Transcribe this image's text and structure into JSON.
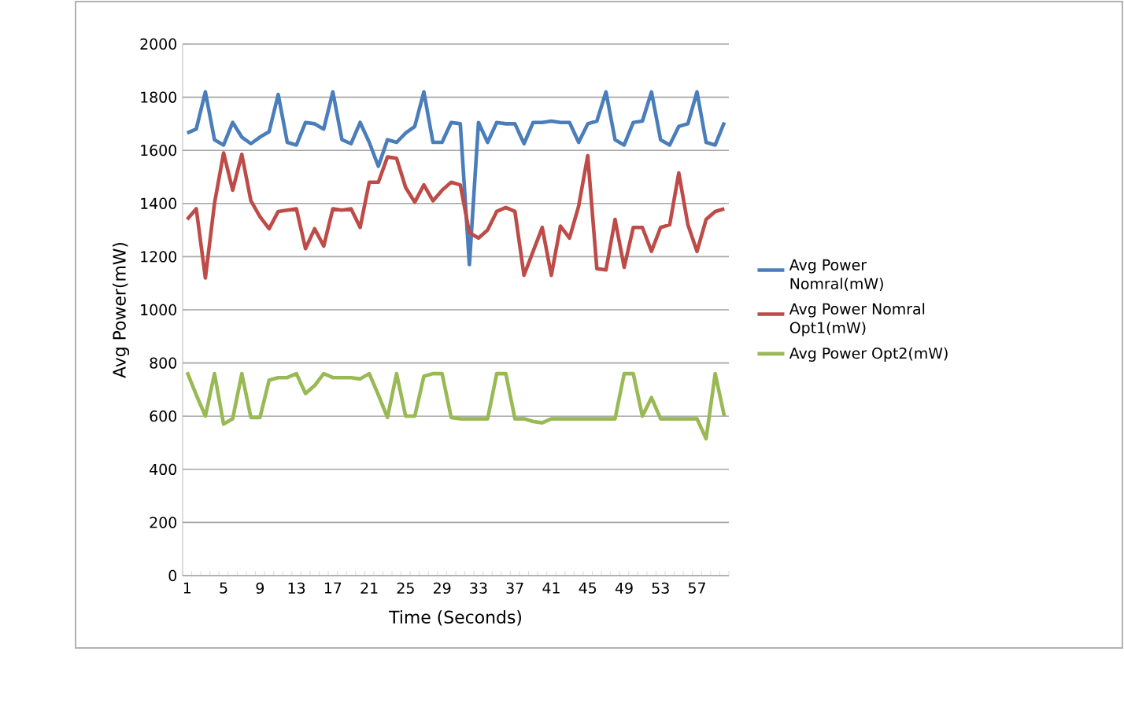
{
  "chart_data": {
    "type": "line",
    "xlabel": "Time (Seconds)",
    "ylabel": "Avg Power(mW)",
    "categories": [
      "1",
      null,
      null,
      null,
      "5",
      null,
      null,
      null,
      "9",
      null,
      null,
      null,
      "13",
      null,
      null,
      null,
      "17",
      null,
      null,
      null,
      "21",
      null,
      null,
      null,
      "25",
      null,
      null,
      null,
      "29",
      null,
      null,
      null,
      "33",
      null,
      null,
      null,
      "37",
      null,
      null,
      null,
      "41",
      null,
      null,
      null,
      "45",
      null,
      null,
      null,
      "49",
      null,
      null,
      null,
      "53",
      null,
      null,
      null,
      "57",
      null,
      null,
      null
    ],
    "series": [
      {
        "name": "Avg Power Nomral(mW)",
        "color": "#4a7ebb",
        "values": [
          1665,
          1680,
          1820,
          1640,
          1620,
          1705,
          1650,
          1625,
          1650,
          1670,
          1810,
          1630,
          1620,
          1705,
          1700,
          1680,
          1820,
          1640,
          1625,
          1705,
          1630,
          1540,
          1640,
          1630,
          1665,
          1690,
          1820,
          1630,
          1630,
          1705,
          1700,
          1170,
          1705,
          1630,
          1705,
          1700,
          1700,
          1625,
          1705,
          1705,
          1710,
          1705,
          1705,
          1630,
          1700,
          1710,
          1820,
          1640,
          1620,
          1705,
          1710,
          1820,
          1640,
          1620,
          1690,
          1700,
          1820,
          1630,
          1620,
          1705
        ]
      },
      {
        "name": "Avg Power Nomral Opt1(mW)",
        "color": "#be4b48",
        "values": [
          1340,
          1380,
          1120,
          1400,
          1590,
          1450,
          1585,
          1410,
          1350,
          1305,
          1370,
          1375,
          1380,
          1230,
          1305,
          1240,
          1380,
          1375,
          1380,
          1310,
          1480,
          1480,
          1575,
          1570,
          1460,
          1405,
          1470,
          1410,
          1450,
          1480,
          1470,
          1290,
          1270,
          1300,
          1370,
          1385,
          1370,
          1130,
          1220,
          1310,
          1130,
          1315,
          1270,
          1390,
          1580,
          1155,
          1150,
          1340,
          1160,
          1310,
          1310,
          1220,
          1310,
          1320,
          1515,
          1320,
          1220,
          1340,
          1370,
          1380
        ]
      },
      {
        "name": "Avg Power Opt2(mW)",
        "color": "#98b954",
        "values": [
          765,
          680,
          600,
          760,
          570,
          590,
          760,
          595,
          595,
          735,
          745,
          745,
          760,
          685,
          715,
          760,
          745,
          745,
          745,
          740,
          760,
          680,
          595,
          760,
          600,
          600,
          750,
          760,
          760,
          595,
          590,
          590,
          590,
          590,
          760,
          760,
          590,
          590,
          580,
          575,
          590,
          590,
          590,
          590,
          590,
          590,
          590,
          590,
          760,
          760,
          600,
          670,
          590,
          590,
          590,
          590,
          590,
          515,
          760,
          600
        ]
      }
    ],
    "ylim": [
      0,
      2000
    ],
    "yticks": [
      0,
      200,
      400,
      600,
      800,
      1000,
      1200,
      1400,
      1600,
      1800,
      2000
    ],
    "grid": "y",
    "legend": "right",
    "marker": "none",
    "line_style": "solid"
  }
}
